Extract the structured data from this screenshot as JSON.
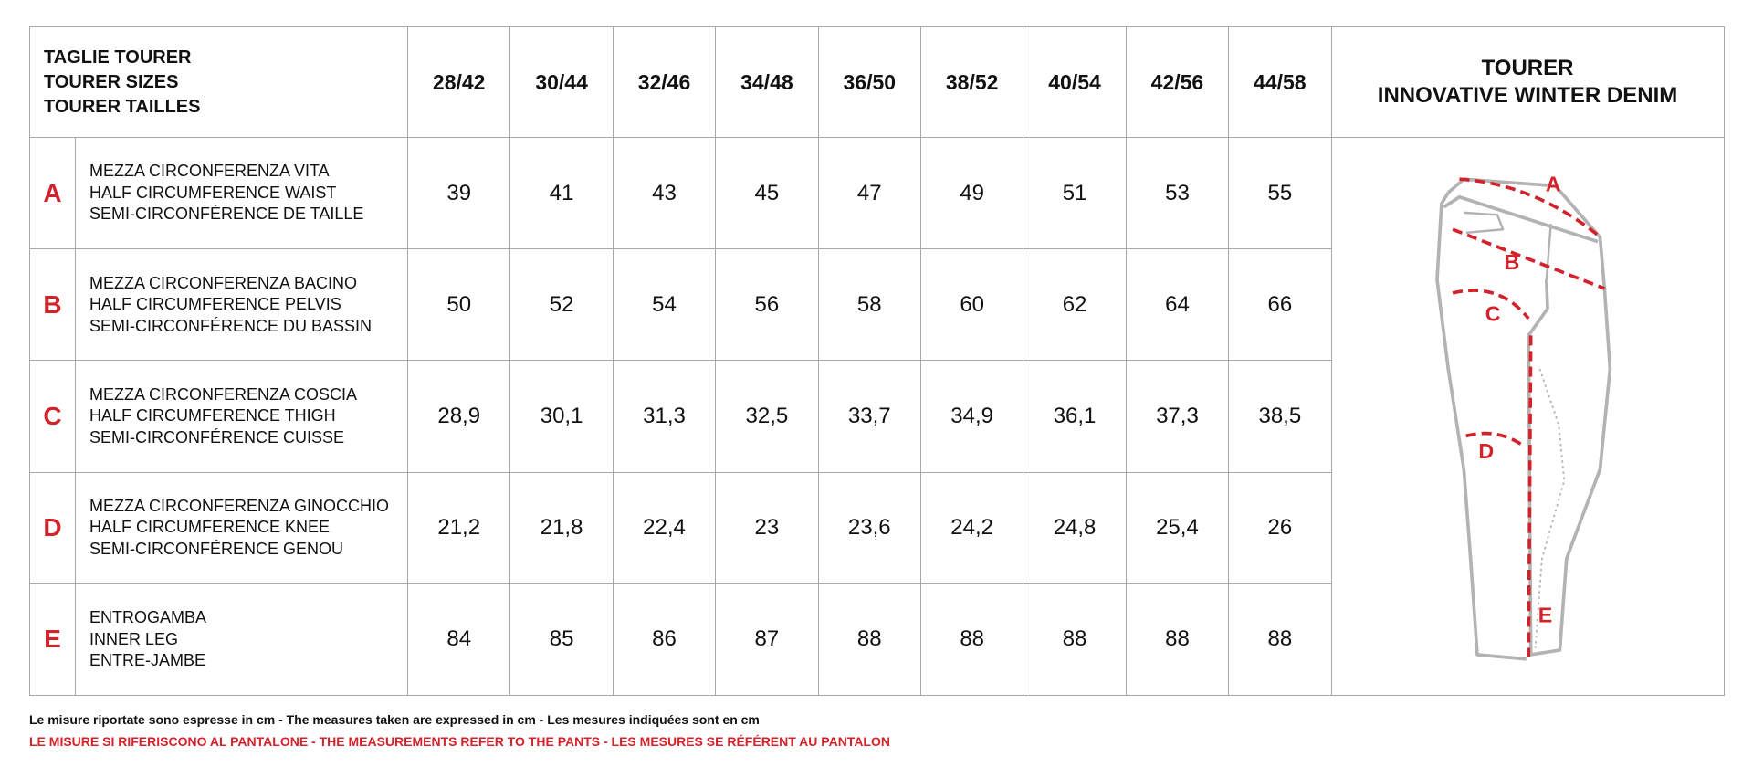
{
  "header": {
    "title_lines": [
      "TAGLIE TOURER",
      "TOURER SIZES",
      "TOURER TAILLES"
    ],
    "sizes": [
      "28/42",
      "30/44",
      "32/46",
      "34/48",
      "36/50",
      "38/52",
      "40/54",
      "42/56",
      "44/58"
    ],
    "product": {
      "name": "TOURER",
      "subtitle": "INNOVATIVE WINTER DENIM"
    }
  },
  "rows": [
    {
      "letter": "A",
      "labels": [
        "MEZZA CIRCONFERENZA VITA",
        "HALF CIRCUMFERENCE WAIST",
        "SEMI-CIRCONFÉRENCE DE TAILLE"
      ],
      "values": [
        "39",
        "41",
        "43",
        "45",
        "47",
        "49",
        "51",
        "53",
        "55"
      ]
    },
    {
      "letter": "B",
      "labels": [
        "MEZZA CIRCONFERENZA BACINO",
        "HALF CIRCUMFERENCE PELVIS",
        "SEMI-CIRCONFÉRENCE DU BASSIN"
      ],
      "values": [
        "50",
        "52",
        "54",
        "56",
        "58",
        "60",
        "62",
        "64",
        "66"
      ]
    },
    {
      "letter": "C",
      "labels": [
        "MEZZA CIRCONFERENZA COSCIA",
        "HALF CIRCUMFERENCE THIGH",
        "SEMI-CIRCONFÉRENCE CUISSE"
      ],
      "values": [
        "28,9",
        "30,1",
        "31,3",
        "32,5",
        "33,7",
        "34,9",
        "36,1",
        "37,3",
        "38,5"
      ]
    },
    {
      "letter": "D",
      "labels": [
        "MEZZA CIRCONFERENZA GINOCCHIO",
        "HALF CIRCUMFERENCE KNEE",
        "SEMI-CIRCONFÉRENCE GENOU"
      ],
      "values": [
        "21,2",
        "21,8",
        "22,4",
        "23",
        "23,6",
        "24,2",
        "24,8",
        "25,4",
        "26"
      ]
    },
    {
      "letter": "E",
      "labels": [
        "ENTROGAMBA",
        "INNER LEG",
        "ENTRE-JAMBE"
      ],
      "values": [
        "84",
        "85",
        "86",
        "87",
        "88",
        "88",
        "88",
        "88",
        "88"
      ]
    }
  ],
  "diagram_labels": [
    "A",
    "B",
    "C",
    "D",
    "E"
  ],
  "footer": {
    "note": "Le misure riportate sono espresse in cm - The measures taken are expressed in cm - Les mesures indiquées sont en cm",
    "warning": "LE MISURE SI RIFERISCONO AL PANTALONE - THE MEASUREMENTS REFER TO THE PANTS - LES MESURES SE RÉFÉRENT AU PANTALON"
  }
}
